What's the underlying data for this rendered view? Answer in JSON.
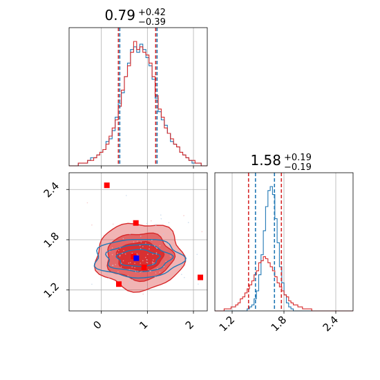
{
  "chart_data": [
    {
      "type": "histogram",
      "panel": "top-left",
      "title_value": "0.79",
      "title_plus": "+0.42",
      "title_minus": "−0.39",
      "xlim": [
        -0.7,
        2.3
      ],
      "x_ticks": [
        0,
        1,
        2
      ],
      "x_tick_labels_shown": false,
      "grid": true,
      "series": [
        {
          "color": "#1f77b4",
          "bin_start": -0.7,
          "bin_width": 0.0667,
          "counts": [
            0,
            0,
            0,
            1,
            1,
            1,
            2,
            3,
            3,
            4,
            5,
            6,
            9,
            10,
            13,
            18,
            23,
            27,
            33,
            38,
            43,
            44,
            42,
            45,
            43,
            40,
            37,
            32,
            25,
            20,
            17,
            15,
            12,
            9,
            8,
            7,
            5,
            4,
            3,
            2,
            1,
            1,
            1,
            0,
            0
          ],
          "quantiles": [
            0.4,
            1.21
          ]
        },
        {
          "color": "#d62728",
          "bin_start": -0.7,
          "bin_width": 0.0667,
          "counts": [
            0,
            0,
            0,
            1,
            1,
            1,
            2,
            2,
            3,
            4,
            5,
            6,
            8,
            11,
            14,
            17,
            22,
            28,
            33,
            37,
            42,
            46,
            43,
            44,
            42,
            41,
            38,
            33,
            26,
            21,
            18,
            14,
            12,
            10,
            8,
            7,
            5,
            4,
            3,
            2,
            2,
            1,
            1,
            0,
            0
          ],
          "quantiles": [
            0.37,
            1.18
          ]
        }
      ]
    },
    {
      "type": "scatter",
      "panel": "bottom-left",
      "xlim": [
        -0.7,
        2.3
      ],
      "ylim": [
        0.95,
        2.6
      ],
      "x_ticks": [
        0,
        1,
        2
      ],
      "x_tick_labels": [
        "0",
        "1",
        "2"
      ],
      "y_ticks": [
        1.2,
        1.8,
        2.4
      ],
      "y_tick_labels": [
        "1.2",
        "1.8",
        "2.4"
      ],
      "grid": true,
      "points_red": [
        [
          0.12,
          2.45
        ],
        [
          0.75,
          2.0
        ],
        [
          0.38,
          1.27
        ],
        [
          2.15,
          1.35
        ],
        [
          0.93,
          1.47
        ],
        [
          0.7,
          1.6
        ]
      ],
      "point_blue": [
        0.76,
        1.58
      ],
      "contours": [
        {
          "color": "#d62728",
          "filled": true,
          "center": [
            0.83,
            1.6
          ],
          "rx": [
            0.95,
            0.72,
            0.5
          ],
          "ry": [
            0.4,
            0.28,
            0.17
          ]
        },
        {
          "color": "#1f77b4",
          "filled": false,
          "center": [
            0.8,
            1.58
          ],
          "rx": [
            0.95,
            0.7,
            0.45
          ],
          "ry": [
            0.23,
            0.16,
            0.1
          ]
        }
      ]
    },
    {
      "type": "histogram",
      "panel": "bottom-right",
      "title_value": "1.58",
      "title_plus": "+0.19",
      "title_minus": "−0.19",
      "xlim": [
        1.0,
        2.6
      ],
      "x_ticks": [
        1.2,
        1.8,
        2.4
      ],
      "x_tick_labels": [
        "1.2",
        "1.8",
        "2.4"
      ],
      "grid": true,
      "series": [
        {
          "color": "#1f77b4",
          "bin_start": 1.0,
          "bin_width": 0.0267,
          "counts": [
            0,
            0,
            0,
            0,
            0,
            0,
            0,
            0,
            0,
            0,
            0,
            0,
            0,
            0,
            1,
            2,
            3,
            6,
            10,
            18,
            28,
            40,
            52,
            60,
            62,
            58,
            46,
            34,
            22,
            14,
            8,
            4,
            2,
            1,
            0,
            0,
            0,
            0,
            0,
            0,
            0,
            0,
            0,
            0,
            0,
            0,
            0,
            0,
            0,
            0,
            0,
            0,
            0,
            0,
            0,
            0,
            0,
            0,
            0,
            0
          ],
          "quantiles": [
            1.47,
            1.69
          ]
        },
        {
          "color": "#d62728",
          "bin_start": 1.0,
          "bin_width": 0.0267,
          "counts": [
            0,
            0,
            0,
            0,
            1,
            1,
            1,
            2,
            2,
            3,
            4,
            6,
            7,
            9,
            11,
            13,
            15,
            18,
            20,
            24,
            25,
            27,
            26,
            24,
            22,
            20,
            17,
            14,
            12,
            10,
            8,
            7,
            5,
            4,
            3,
            3,
            2,
            2,
            1,
            1,
            1,
            1,
            0,
            0,
            0,
            0,
            0,
            0,
            0,
            0,
            0,
            0,
            0,
            0,
            0,
            0,
            0,
            0,
            0,
            0
          ],
          "quantiles": [
            1.39,
            1.77
          ]
        }
      ]
    }
  ]
}
